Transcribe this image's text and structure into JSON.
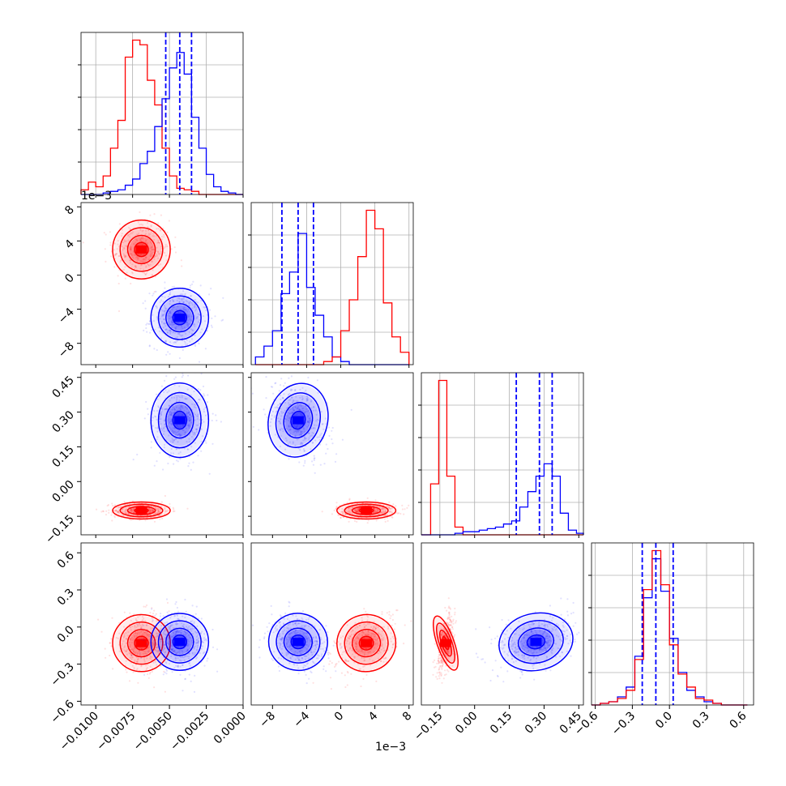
{
  "chart_data": {
    "type": "corner",
    "grid": true,
    "colors": {
      "series_a": "#ff0000",
      "series_b": "#0000ff"
    },
    "parameters": [
      {
        "ticks": [
          -0.01,
          -0.0075,
          -0.005,
          -0.0025,
          0.0
        ],
        "tick_labels": [
          "−0.0100",
          "−0.0075",
          "−0.0050",
          "−0.0025",
          "0.0000"
        ],
        "range": [
          -0.011,
          0.0
        ]
      },
      {
        "ticks": [
          -8,
          -4,
          0,
          4,
          8
        ],
        "tick_labels": [
          "−8",
          "−4",
          "0",
          "4",
          "8"
        ],
        "range": [
          -10.5,
          8.5
        ],
        "offset_text": "1e−3"
      },
      {
        "ticks": [
          -0.15,
          0.0,
          0.15,
          0.3,
          0.45
        ],
        "tick_labels": [
          "−0.15",
          "0.00",
          "0.15",
          "0.30",
          "0.45"
        ],
        "range": [
          -0.23,
          0.47
        ]
      },
      {
        "ticks": [
          -0.6,
          -0.3,
          0.0,
          0.3,
          0.6
        ],
        "tick_labels": [
          "−0.6",
          "−0.3",
          "0.0",
          "0.3",
          "0.6"
        ],
        "range": [
          -0.63,
          0.68
        ]
      }
    ],
    "series": [
      {
        "color": "#ff0000",
        "mean": [
          -0.0069,
          3.0,
          -0.125,
          -0.13
        ],
        "sd": [
          0.00085,
          1.5,
          0.016,
          0.1
        ]
      },
      {
        "color": "#0000ff",
        "mean": [
          -0.0043,
          -5.0,
          0.265,
          -0.12
        ],
        "sd": [
          0.00085,
          1.5,
          0.07,
          0.1
        ]
      }
    ],
    "quantile_lines": [
      [
        -0.00525,
        -0.0043,
        -0.0035
      ],
      [
        -6.9,
        -5.0,
        -3.2
      ],
      [
        0.18,
        0.28,
        0.335
      ],
      [
        -0.22,
        -0.11,
        0.03
      ]
    ],
    "histograms": [
      {
        "param": 0,
        "series": [
          {
            "color": "#ff0000",
            "edges": [
              -0.011,
              -0.0105,
              -0.01,
              -0.0095,
              -0.009,
              -0.0085,
              -0.008,
              -0.0075,
              -0.007,
              -0.0065,
              -0.006,
              -0.0055,
              -0.005,
              -0.0045,
              -0.004,
              -0.0035,
              -0.003,
              -0.0025,
              -0.002,
              -0.0015,
              -0.001,
              -0.0005,
              0.0
            ],
            "counts": [
              3,
              8,
              5,
              12,
              30,
              48,
              89,
              100,
              97,
              74,
              58,
              30,
              12,
              4,
              3,
              2,
              0,
              0,
              0,
              0,
              0,
              0
            ]
          },
          {
            "color": "#0000ff",
            "edges": [
              -0.011,
              -0.0105,
              -0.01,
              -0.0095,
              -0.009,
              -0.0085,
              -0.008,
              -0.0075,
              -0.007,
              -0.0065,
              -0.006,
              -0.0055,
              -0.005,
              -0.0045,
              -0.004,
              -0.0035,
              -0.003,
              -0.0025,
              -0.002,
              -0.0015,
              -0.001,
              -0.0005,
              0.0
            ],
            "counts": [
              0,
              0,
              0,
              1,
              2,
              3,
              6,
              10,
              20,
              28,
              44,
              62,
              82,
              92,
              78,
              50,
              30,
              13,
              5,
              2,
              1,
              0
            ]
          }
        ]
      },
      {
        "param": 1,
        "series": [
          {
            "color": "#0000ff",
            "edges": [
              -10,
              -9,
              -8,
              -7,
              -6,
              -5,
              -4,
              -3,
              -2,
              -1,
              0,
              1,
              2,
              3,
              4,
              5,
              6,
              7,
              8
            ],
            "counts": [
              5,
              12,
              22,
              46,
              60,
              85,
              50,
              32,
              18,
              5,
              2,
              0,
              0,
              0,
              0,
              0,
              0,
              0
            ]
          },
          {
            "color": "#ff0000",
            "edges": [
              -10,
              -9,
              -8,
              -7,
              -6,
              -5,
              -4,
              -3,
              -2,
              -1,
              0,
              1,
              2,
              3,
              4,
              5,
              6,
              7,
              8
            ],
            "counts": [
              0,
              0,
              0,
              0,
              0,
              0,
              0,
              0,
              2,
              5,
              22,
              42,
              70,
              100,
              88,
              40,
              18,
              8
            ]
          }
        ]
      },
      {
        "param": 2,
        "series": [
          {
            "color": "#ff0000",
            "edges": [
              -0.23,
              -0.19,
              -0.155,
              -0.12,
              -0.085,
              -0.05,
              -0.015,
              0.02,
              0.055,
              0.09,
              0.125,
              0.16,
              0.195,
              0.23,
              0.265,
              0.3,
              0.335,
              0.37,
              0.405,
              0.44,
              0.47
            ],
            "counts": [
              0,
              33,
              100,
              38,
              5,
              0,
              0,
              0,
              0,
              0,
              0,
              0,
              0,
              0,
              0,
              0,
              0,
              0,
              0,
              0
            ]
          },
          {
            "color": "#0000ff",
            "edges": [
              -0.23,
              -0.19,
              -0.155,
              -0.12,
              -0.085,
              -0.05,
              -0.015,
              0.02,
              0.055,
              0.09,
              0.125,
              0.16,
              0.195,
              0.23,
              0.265,
              0.3,
              0.335,
              0.37,
              0.405,
              0.44,
              0.47
            ],
            "counts": [
              0,
              0,
              0,
              0,
              1,
              2,
              2,
              3,
              4,
              5,
              7,
              9,
              18,
              28,
              38,
              46,
              38,
              14,
              3,
              1
            ]
          }
        ]
      },
      {
        "param": 3,
        "series": [
          {
            "color": "#0000ff",
            "edges": [
              -0.63,
              -0.56,
              -0.49,
              -0.42,
              -0.35,
              -0.28,
              -0.21,
              -0.14,
              -0.07,
              0.0,
              0.07,
              0.14,
              0.21,
              0.28,
              0.35,
              0.42,
              0.49,
              0.56,
              0.63
            ],
            "counts": [
              0,
              1,
              2,
              5,
              11,
              30,
              66,
              90,
              70,
              41,
              20,
              9,
              5,
              2,
              1,
              0,
              0,
              0
            ]
          },
          {
            "color": "#ff0000",
            "edges": [
              -0.63,
              -0.56,
              -0.49,
              -0.42,
              -0.35,
              -0.28,
              -0.21,
              -0.14,
              -0.07,
              0.0,
              0.07,
              0.14,
              0.21,
              0.28,
              0.35,
              0.42,
              0.49,
              0.56,
              0.63
            ],
            "counts": [
              0,
              1,
              2,
              4,
              9,
              28,
              71,
              95,
              74,
              37,
              19,
              11,
              4,
              3,
              1,
              0,
              0,
              0
            ]
          }
        ]
      }
    ]
  }
}
